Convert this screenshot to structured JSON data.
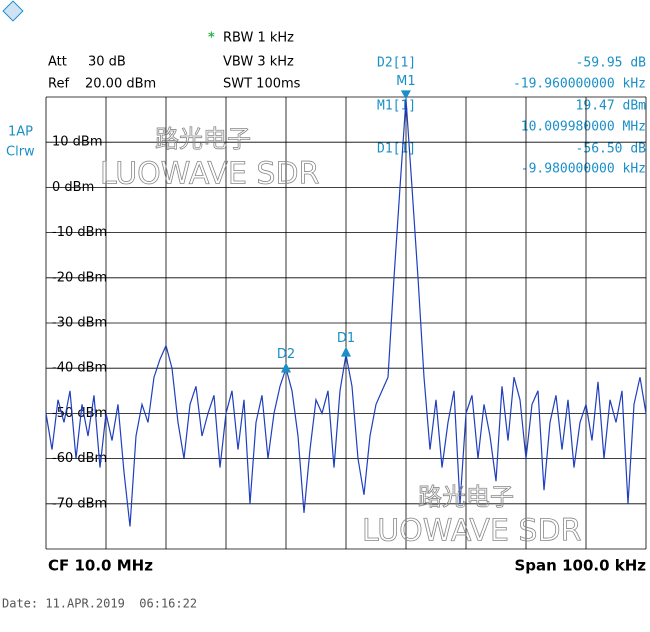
{
  "chart_data": {
    "type": "line",
    "header": {
      "att_label": "Att",
      "att": "30 dB",
      "ref_label": "Ref",
      "ref": "20.00 dBm",
      "star": "*",
      "rbw": "RBW 1 kHz",
      "vbw": "VBW 3 kHz",
      "swt": "SWT 100ms",
      "trace_id": "1AP",
      "trace_mode": "Clrw"
    },
    "readouts": [
      {
        "name": "D2[1]",
        "level": "-59.95 dB",
        "freq": "-19.960000000 kHz"
      },
      {
        "name": "M1[1]",
        "level": "19.47 dBm",
        "freq": "10.009980000 MHz"
      },
      {
        "name": "D1[1]",
        "level": "-56.50 dB",
        "freq": "-9.980000000 kHz"
      }
    ],
    "markers": [
      {
        "label": "M1",
        "x": 10.00998,
        "y": 19.47
      },
      {
        "label": "D1",
        "x": 10.0,
        "y": -37
      },
      {
        "label": "D2",
        "x": 9.99,
        "y": -40.5
      }
    ],
    "footer": {
      "cf": "CF 10.0 MHz",
      "span": "Span 100.0 kHz",
      "date": "Date: 11.APR.2019  06:16:22"
    },
    "watermark": {
      "cn": "路光电子",
      "en": "LUOWAVE SDR"
    },
    "xlim": [
      9.95,
      10.05
    ],
    "ylim": [
      -80,
      20
    ],
    "yticks": [
      {
        "value": 10,
        "label": "10 dBm"
      },
      {
        "value": 0,
        "label": "0 dBm"
      },
      {
        "value": -10,
        "label": "-10 dBm"
      },
      {
        "value": -20,
        "label": "-20 dBm"
      },
      {
        "value": -30,
        "label": "-30 dBm"
      },
      {
        "value": -40,
        "label": "-40 dBm"
      },
      {
        "value": -50,
        "label": "-50 dBm"
      },
      {
        "value": -60,
        "label": "-60 dBm"
      },
      {
        "value": -70,
        "label": "-70 dBm"
      }
    ],
    "series": [
      {
        "color": "#1f3fbf",
        "x": [
          9.95,
          9.951,
          9.952,
          9.953,
          9.954,
          9.955,
          9.956,
          9.957,
          9.958,
          9.959,
          9.96,
          9.961,
          9.962,
          9.963,
          9.964,
          9.965,
          9.966,
          9.967,
          9.968,
          9.969,
          9.97,
          9.971,
          9.972,
          9.973,
          9.974,
          9.975,
          9.976,
          9.977,
          9.978,
          9.979,
          9.98,
          9.981,
          9.982,
          9.983,
          9.984,
          9.985,
          9.986,
          9.987,
          9.988,
          9.989,
          9.99,
          9.991,
          9.992,
          9.993,
          9.994,
          9.995,
          9.996,
          9.997,
          9.998,
          9.999,
          10.0,
          10.001,
          10.002,
          10.003,
          10.004,
          10.005,
          10.006,
          10.007,
          10.008,
          10.009,
          10.01,
          10.011,
          10.012,
          10.013,
          10.014,
          10.015,
          10.016,
          10.017,
          10.018,
          10.019,
          10.02,
          10.021,
          10.022,
          10.023,
          10.024,
          10.025,
          10.026,
          10.027,
          10.028,
          10.029,
          10.03,
          10.031,
          10.032,
          10.033,
          10.034,
          10.035,
          10.036,
          10.037,
          10.038,
          10.039,
          10.04,
          10.041,
          10.042,
          10.043,
          10.044,
          10.045,
          10.046,
          10.047,
          10.048,
          10.049,
          10.05
        ],
        "values": [
          -50,
          -58,
          -47,
          -52,
          -45,
          -60,
          -48,
          -55,
          -46,
          -62,
          -50,
          -56,
          -48,
          -63,
          -75,
          -55,
          -48,
          -52,
          -42,
          -38,
          -35,
          -40,
          -52,
          -60,
          -48,
          -44,
          -55,
          -50,
          -46,
          -62,
          -50,
          -45,
          -58,
          -47,
          -70,
          -52,
          -46,
          -60,
          -50,
          -44,
          -40,
          -45,
          -55,
          -72,
          -58,
          -47,
          -50,
          -45,
          -62,
          -45,
          -37,
          -44,
          -60,
          -68,
          -55,
          -48,
          -45,
          -42,
          -20,
          0,
          19.5,
          0,
          -20,
          -42,
          -58,
          -47,
          -62,
          -52,
          -45,
          -70,
          -50,
          -46,
          -60,
          -48,
          -55,
          -65,
          -44,
          -56,
          -42,
          -47,
          -60,
          -48,
          -45,
          -67,
          -52,
          -46,
          -58,
          -47,
          -62,
          -52,
          -48,
          -56,
          -43,
          -60,
          -47,
          -52,
          -45,
          -70,
          -48,
          -42,
          -50
        ]
      }
    ]
  }
}
